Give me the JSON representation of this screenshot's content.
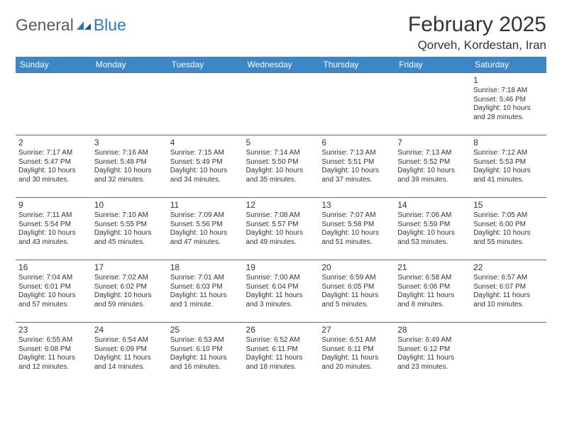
{
  "logo": {
    "general": "General",
    "blue": "Blue"
  },
  "title": "February 2025",
  "location": "Qorveh, Kordestan, Iran",
  "colors": {
    "header_bg": "#3b87c8",
    "header_text": "#ffffff",
    "border": "#6b6b6b",
    "text": "#333333",
    "logo_gray": "#5a5a5a",
    "logo_blue": "#2f7abf",
    "background": "#ffffff"
  },
  "day_names": [
    "Sunday",
    "Monday",
    "Tuesday",
    "Wednesday",
    "Thursday",
    "Friday",
    "Saturday"
  ],
  "weeks": [
    [
      null,
      null,
      null,
      null,
      null,
      null,
      {
        "n": "1",
        "sr": "Sunrise: 7:18 AM",
        "ss": "Sunset: 5:46 PM",
        "dl1": "Daylight: 10 hours",
        "dl2": "and 28 minutes."
      }
    ],
    [
      {
        "n": "2",
        "sr": "Sunrise: 7:17 AM",
        "ss": "Sunset: 5:47 PM",
        "dl1": "Daylight: 10 hours",
        "dl2": "and 30 minutes."
      },
      {
        "n": "3",
        "sr": "Sunrise: 7:16 AM",
        "ss": "Sunset: 5:48 PM",
        "dl1": "Daylight: 10 hours",
        "dl2": "and 32 minutes."
      },
      {
        "n": "4",
        "sr": "Sunrise: 7:15 AM",
        "ss": "Sunset: 5:49 PM",
        "dl1": "Daylight: 10 hours",
        "dl2": "and 34 minutes."
      },
      {
        "n": "5",
        "sr": "Sunrise: 7:14 AM",
        "ss": "Sunset: 5:50 PM",
        "dl1": "Daylight: 10 hours",
        "dl2": "and 35 minutes."
      },
      {
        "n": "6",
        "sr": "Sunrise: 7:13 AM",
        "ss": "Sunset: 5:51 PM",
        "dl1": "Daylight: 10 hours",
        "dl2": "and 37 minutes."
      },
      {
        "n": "7",
        "sr": "Sunrise: 7:13 AM",
        "ss": "Sunset: 5:52 PM",
        "dl1": "Daylight: 10 hours",
        "dl2": "and 39 minutes."
      },
      {
        "n": "8",
        "sr": "Sunrise: 7:12 AM",
        "ss": "Sunset: 5:53 PM",
        "dl1": "Daylight: 10 hours",
        "dl2": "and 41 minutes."
      }
    ],
    [
      {
        "n": "9",
        "sr": "Sunrise: 7:11 AM",
        "ss": "Sunset: 5:54 PM",
        "dl1": "Daylight: 10 hours",
        "dl2": "and 43 minutes."
      },
      {
        "n": "10",
        "sr": "Sunrise: 7:10 AM",
        "ss": "Sunset: 5:55 PM",
        "dl1": "Daylight: 10 hours",
        "dl2": "and 45 minutes."
      },
      {
        "n": "11",
        "sr": "Sunrise: 7:09 AM",
        "ss": "Sunset: 5:56 PM",
        "dl1": "Daylight: 10 hours",
        "dl2": "and 47 minutes."
      },
      {
        "n": "12",
        "sr": "Sunrise: 7:08 AM",
        "ss": "Sunset: 5:57 PM",
        "dl1": "Daylight: 10 hours",
        "dl2": "and 49 minutes."
      },
      {
        "n": "13",
        "sr": "Sunrise: 7:07 AM",
        "ss": "Sunset: 5:58 PM",
        "dl1": "Daylight: 10 hours",
        "dl2": "and 51 minutes."
      },
      {
        "n": "14",
        "sr": "Sunrise: 7:06 AM",
        "ss": "Sunset: 5:59 PM",
        "dl1": "Daylight: 10 hours",
        "dl2": "and 53 minutes."
      },
      {
        "n": "15",
        "sr": "Sunrise: 7:05 AM",
        "ss": "Sunset: 6:00 PM",
        "dl1": "Daylight: 10 hours",
        "dl2": "and 55 minutes."
      }
    ],
    [
      {
        "n": "16",
        "sr": "Sunrise: 7:04 AM",
        "ss": "Sunset: 6:01 PM",
        "dl1": "Daylight: 10 hours",
        "dl2": "and 57 minutes."
      },
      {
        "n": "17",
        "sr": "Sunrise: 7:02 AM",
        "ss": "Sunset: 6:02 PM",
        "dl1": "Daylight: 10 hours",
        "dl2": "and 59 minutes."
      },
      {
        "n": "18",
        "sr": "Sunrise: 7:01 AM",
        "ss": "Sunset: 6:03 PM",
        "dl1": "Daylight: 11 hours",
        "dl2": "and 1 minute."
      },
      {
        "n": "19",
        "sr": "Sunrise: 7:00 AM",
        "ss": "Sunset: 6:04 PM",
        "dl1": "Daylight: 11 hours",
        "dl2": "and 3 minutes."
      },
      {
        "n": "20",
        "sr": "Sunrise: 6:59 AM",
        "ss": "Sunset: 6:05 PM",
        "dl1": "Daylight: 11 hours",
        "dl2": "and 5 minutes."
      },
      {
        "n": "21",
        "sr": "Sunrise: 6:58 AM",
        "ss": "Sunset: 6:06 PM",
        "dl1": "Daylight: 11 hours",
        "dl2": "and 8 minutes."
      },
      {
        "n": "22",
        "sr": "Sunrise: 6:57 AM",
        "ss": "Sunset: 6:07 PM",
        "dl1": "Daylight: 11 hours",
        "dl2": "and 10 minutes."
      }
    ],
    [
      {
        "n": "23",
        "sr": "Sunrise: 6:55 AM",
        "ss": "Sunset: 6:08 PM",
        "dl1": "Daylight: 11 hours",
        "dl2": "and 12 minutes."
      },
      {
        "n": "24",
        "sr": "Sunrise: 6:54 AM",
        "ss": "Sunset: 6:09 PM",
        "dl1": "Daylight: 11 hours",
        "dl2": "and 14 minutes."
      },
      {
        "n": "25",
        "sr": "Sunrise: 6:53 AM",
        "ss": "Sunset: 6:10 PM",
        "dl1": "Daylight: 11 hours",
        "dl2": "and 16 minutes."
      },
      {
        "n": "26",
        "sr": "Sunrise: 6:52 AM",
        "ss": "Sunset: 6:11 PM",
        "dl1": "Daylight: 11 hours",
        "dl2": "and 18 minutes."
      },
      {
        "n": "27",
        "sr": "Sunrise: 6:51 AM",
        "ss": "Sunset: 6:11 PM",
        "dl1": "Daylight: 11 hours",
        "dl2": "and 20 minutes."
      },
      {
        "n": "28",
        "sr": "Sunrise: 6:49 AM",
        "ss": "Sunset: 6:12 PM",
        "dl1": "Daylight: 11 hours",
        "dl2": "and 23 minutes."
      },
      null
    ]
  ]
}
